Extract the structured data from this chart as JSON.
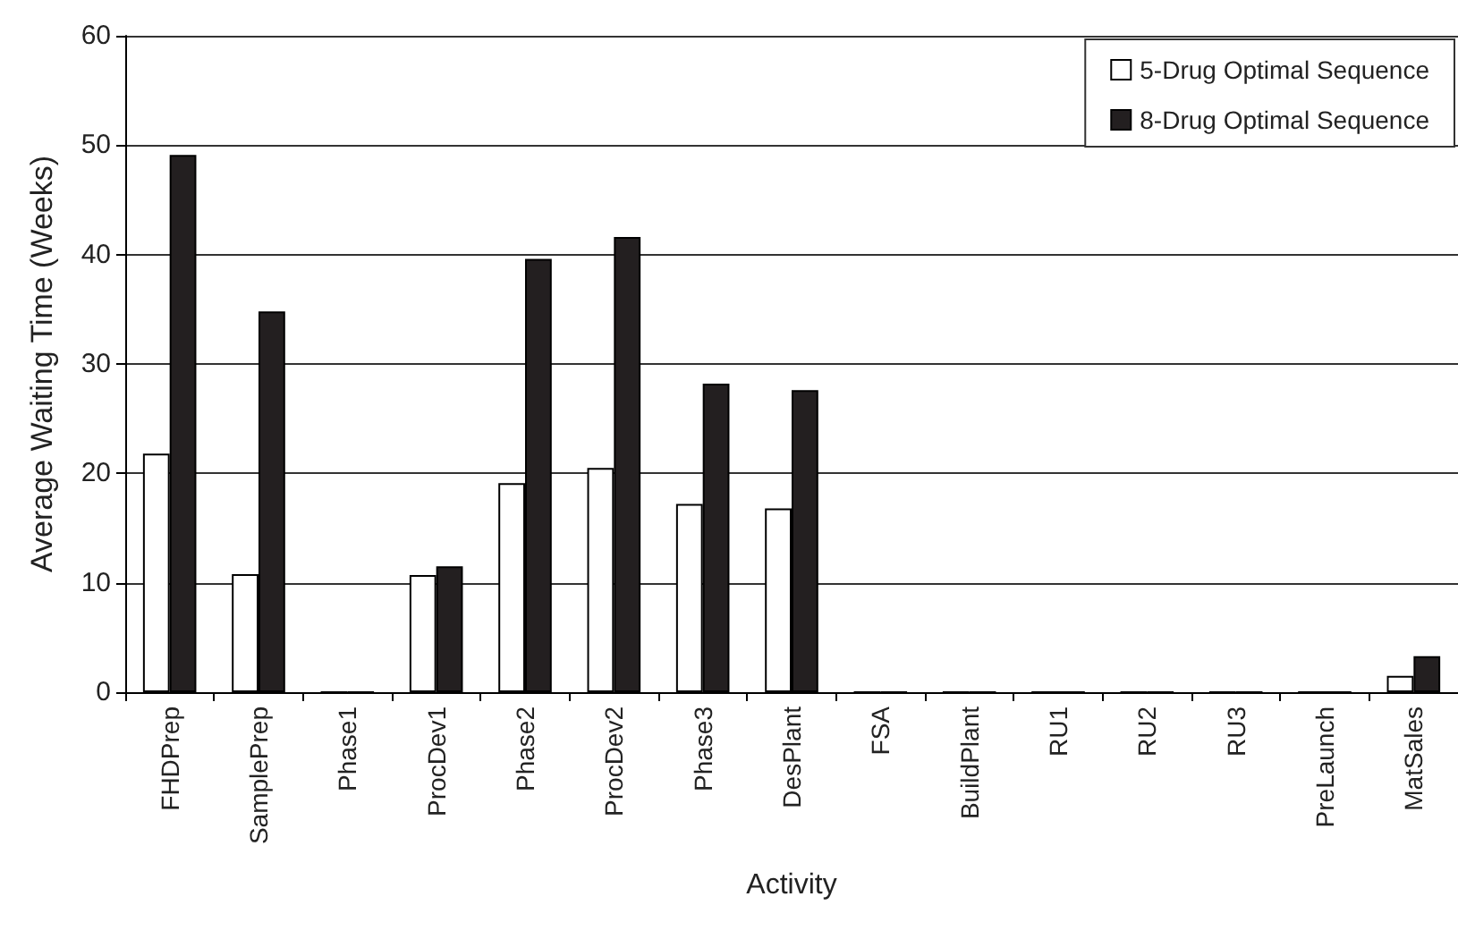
{
  "chart_data": {
    "type": "bar",
    "xlabel": "Activity",
    "ylabel": "Average Waiting Time (Weeks)",
    "categories": [
      "FHDPrep",
      "SamplePrep",
      "Phase1",
      "ProcDev1",
      "Phase2",
      "ProcDev2",
      "Phase3",
      "DesPlant",
      "FSA",
      "BuildPlant",
      "RU1",
      "RU2",
      "RU3",
      "PreLaunch",
      "MatSales"
    ],
    "series": [
      {
        "name": "5-Drug Optimal Sequence",
        "color": "#ffffff",
        "values": [
          21.8,
          10.8,
          0,
          10.7,
          19.1,
          20.5,
          17.2,
          16.8,
          0,
          0,
          0,
          0,
          0,
          0,
          1.5
        ]
      },
      {
        "name": "8-Drug Optimal Sequence",
        "color": "#231f20",
        "values": [
          49.1,
          34.8,
          0,
          11.5,
          39.6,
          41.6,
          28.2,
          27.6,
          0,
          0,
          0,
          0,
          0,
          0,
          3.3
        ]
      }
    ],
    "ylim": [
      0,
      60
    ],
    "yticks": [
      0,
      10,
      20,
      30,
      40,
      50,
      60
    ],
    "grid": "y",
    "legend": "top right"
  }
}
